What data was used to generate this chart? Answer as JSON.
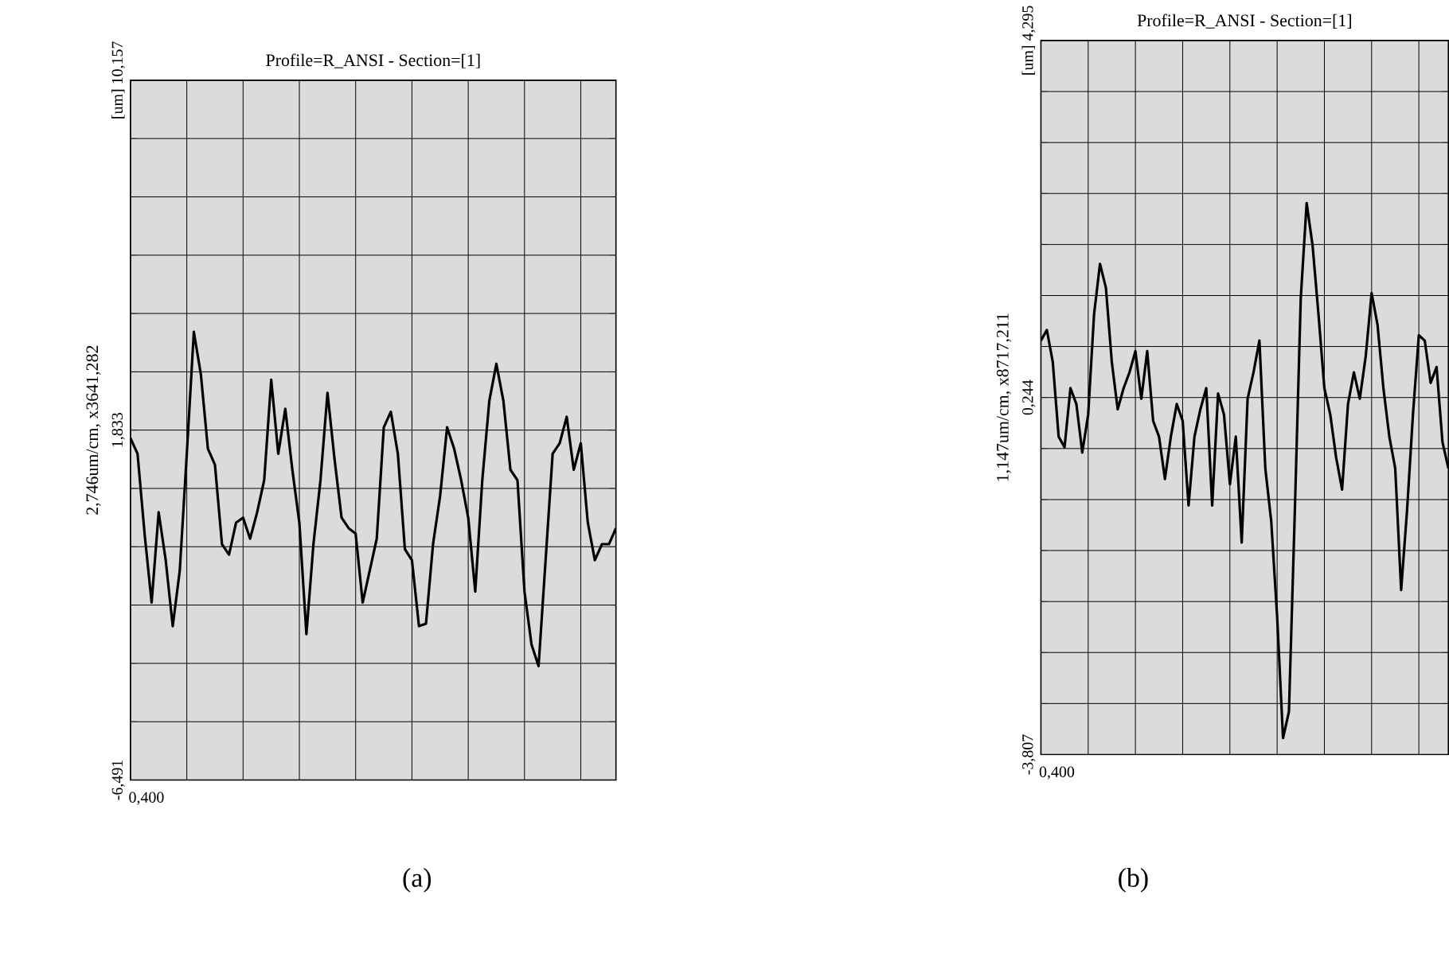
{
  "chart_data": [
    {
      "type": "line",
      "title": "Profile=R_ANSI - Section=[1]",
      "ylabel": "2,746um/cm, x3641,282",
      "annotations": [
        "0,400",
        "(a)"
      ],
      "grid": true,
      "color": "#000000",
      "categories": [
        null,
        null,
        null,
        null,
        null,
        null,
        null,
        null,
        null,
        null,
        null,
        null,
        null,
        null,
        null,
        null,
        null,
        null,
        null,
        null,
        null,
        null,
        null,
        null,
        null,
        null,
        null,
        null,
        null,
        null,
        null,
        null,
        null,
        null,
        null,
        null,
        null,
        null,
        null,
        null,
        null,
        null,
        null,
        null,
        null,
        null,
        null,
        null,
        null,
        null,
        null,
        null,
        null,
        null,
        null,
        null,
        null,
        null,
        null,
        null,
        null,
        null,
        null,
        null,
        null,
        null,
        null,
        null,
        null,
        null
      ],
      "values": [
        1.64,
        1.27,
        -0.63,
        -2.27,
        -0.12,
        -1.26,
        -2.83,
        -1.51,
        1.27,
        4.17,
        3.16,
        1.39,
        1.01,
        -0.88,
        -1.13,
        -0.37,
        -0.25,
        -0.75,
        -0.12,
        0.64,
        3.03,
        1.27,
        2.34,
        0.89,
        -0.37,
        -3.02,
        -0.88,
        0.64,
        2.72,
        1.14,
        -0.25,
        -0.5,
        -0.63,
        -2.27,
        -1.51,
        -0.75,
        1.9,
        2.27,
        1.27,
        -1.0,
        -1.26,
        -2.83,
        -2.77,
        -0.88,
        0.26,
        1.9,
        1.39,
        0.64,
        -0.25,
        -2.01,
        0.64,
        2.53,
        3.41,
        2.53,
        0.89,
        0.64,
        -2.01,
        -3.27,
        -3.78,
        -1.26,
        1.27,
        1.52,
        2.15,
        0.89,
        1.52,
        -0.37,
        -1.26,
        -0.88,
        -0.88,
        -0.5
      ],
      "ylim": [
        -6.491,
        10.157
      ],
      "yticks": [
        {
          "value": 10.157,
          "label": "[um] 10,157"
        },
        {
          "value": 8.77,
          "label": null
        },
        {
          "value": 7.383,
          "label": null
        },
        {
          "value": 5.995,
          "label": null
        },
        {
          "value": 4.608,
          "label": null
        },
        {
          "value": 3.22,
          "label": null
        },
        {
          "value": 1.833,
          "label": "1,833"
        },
        {
          "value": 0.446,
          "label": null
        },
        {
          "value": -0.941,
          "label": null
        },
        {
          "value": -2.329,
          "label": null
        },
        {
          "value": -3.716,
          "label": null
        },
        {
          "value": -5.104,
          "label": null
        },
        {
          "value": -6.491,
          "label": "-6,491"
        }
      ]
    },
    {
      "type": "line",
      "title": "Profile=R_ANSI - Section=[1]",
      "ylabel": "1,147um/cm, x8717,211",
      "annotations": [
        "0,400",
        "(b)"
      ],
      "grid": true,
      "color": "#000000",
      "categories": [
        null,
        null,
        null,
        null,
        null,
        null,
        null,
        null,
        null,
        null,
        null,
        null,
        null,
        null,
        null,
        null,
        null,
        null,
        null,
        null,
        null,
        null,
        null,
        null,
        null,
        null,
        null,
        null,
        null,
        null,
        null,
        null,
        null,
        null,
        null,
        null,
        null,
        null,
        null,
        null,
        null,
        null,
        null,
        null,
        null,
        null,
        null,
        null,
        null,
        null,
        null,
        null,
        null,
        null,
        null,
        null,
        null,
        null,
        null,
        null,
        null,
        null,
        null,
        null,
        null,
        null,
        null,
        null,
        null,
        null
      ],
      "values": [
        0.89,
        1.01,
        0.65,
        -0.2,
        -0.32,
        0.35,
        0.17,
        -0.38,
        0.05,
        1.19,
        1.76,
        1.49,
        0.65,
        0.11,
        0.35,
        0.53,
        0.77,
        0.23,
        0.77,
        -0.02,
        -0.2,
        -0.68,
        -0.2,
        0.17,
        -0.02,
        -0.98,
        -0.2,
        0.11,
        0.35,
        -0.98,
        0.29,
        0.05,
        -0.74,
        -0.2,
        -1.4,
        0.23,
        0.53,
        0.89,
        -0.56,
        -1.16,
        -2.24,
        -3.62,
        -3.32,
        -1.04,
        1.37,
        2.45,
        1.97,
        1.19,
        0.35,
        0.05,
        -0.44,
        -0.8,
        0.17,
        0.53,
        0.23,
        0.71,
        1.43,
        1.07,
        0.35,
        -0.2,
        -0.56,
        -1.94,
        -1.04,
        0.05,
        0.95,
        0.89,
        0.41,
        0.59,
        -0.26,
        -0.56
      ],
      "ylim": [
        -3.807,
        4.295
      ],
      "yticks": [
        {
          "value": 4.295,
          "label": "[um] 4,295"
        },
        {
          "value": 3.716,
          "label": null
        },
        {
          "value": 3.137,
          "label": null
        },
        {
          "value": 2.559,
          "label": null
        },
        {
          "value": 1.98,
          "label": null
        },
        {
          "value": 1.401,
          "label": null
        },
        {
          "value": 0.823,
          "label": null
        },
        {
          "value": 0.244,
          "label": "0,244"
        },
        {
          "value": -0.335,
          "label": null
        },
        {
          "value": -0.914,
          "label": null
        },
        {
          "value": -1.492,
          "label": null
        },
        {
          "value": -2.071,
          "label": null
        },
        {
          "value": -2.649,
          "label": null
        },
        {
          "value": -3.228,
          "label": null
        },
        {
          "value": -3.807,
          "label": "-3,807"
        }
      ]
    }
  ]
}
